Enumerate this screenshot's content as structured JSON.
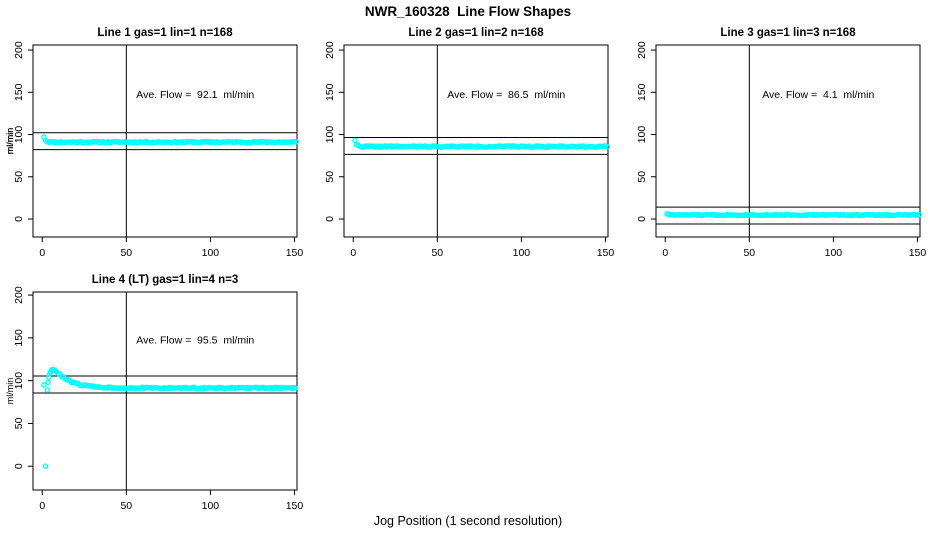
{
  "header": {
    "title": "NWR_160328  Line Flow Shapes"
  },
  "footer": {
    "xlabel": "Jog Position (1 second resolution)"
  },
  "colors": {
    "marker": "#00ffff",
    "axis": "#000000",
    "background": "#ffffff"
  },
  "chart_data": [
    {
      "type": "scatter",
      "title": "Line 1 gas=1 lin=1 n=168",
      "gas": 1,
      "lin": 1,
      "n": 168,
      "annotation": "Ave. Flow =  92.1  ml/min",
      "ave_flow_ml_min": 92.1,
      "ylabel": "ml/min",
      "xticks": [
        0,
        50,
        100,
        150
      ],
      "yticks": [
        0,
        50,
        100,
        150,
        200
      ],
      "xlim": [
        -5.5,
        151.5
      ],
      "ylim": [
        -21.3,
        206
      ],
      "vline_x": 50,
      "ref_lines": [
        102.1,
        82.1
      ],
      "marker": "open-circle",
      "marker_color": "#00ffff",
      "series": [
        {
          "name": "flow",
          "points_spec": {
            "kind": "settle",
            "x_start": 1,
            "x_end": 151,
            "step": 1,
            "y_start": 97.5,
            "y_settle": 91.0,
            "tau": 0.9,
            "jitter": 1.6,
            "seed": 11
          }
        }
      ]
    },
    {
      "type": "scatter",
      "title": "Line 2 gas=1 lin=2 n=168",
      "gas": 1,
      "lin": 2,
      "n": 168,
      "annotation": "Ave. Flow =  86.5  ml/min",
      "ave_flow_ml_min": 86.5,
      "ylabel": "ml/min",
      "xticks": [
        0,
        50,
        100,
        150
      ],
      "yticks": [
        0,
        50,
        100,
        150,
        200
      ],
      "xlim": [
        -5.5,
        151.5
      ],
      "ylim": [
        -21.3,
        206
      ],
      "vline_x": 50,
      "ref_lines": [
        96.5,
        76.5
      ],
      "marker": "open-circle",
      "marker_color": "#00ffff",
      "series": [
        {
          "name": "flow",
          "points_spec": {
            "kind": "settle",
            "x_start": 1,
            "x_end": 151,
            "step": 1,
            "y_start": 93.5,
            "y_settle": 85.8,
            "tau": 0.9,
            "jitter": 1.7,
            "seed": 22
          }
        }
      ]
    },
    {
      "type": "scatter",
      "title": "Line 3 gas=1 lin=3 n=168",
      "gas": 1,
      "lin": 3,
      "n": 168,
      "annotation": "Ave. Flow =  4.1  ml/min",
      "ave_flow_ml_min": 4.1,
      "ylabel": "ml/min",
      "xticks": [
        0,
        50,
        100,
        150
      ],
      "yticks": [
        0,
        50,
        100,
        150,
        200
      ],
      "xlim": [
        -5.5,
        151.5
      ],
      "ylim": [
        -21.3,
        206
      ],
      "vline_x": 50,
      "ref_lines": [
        14.1,
        -5.9
      ],
      "marker": "open-circle",
      "marker_color": "#00ffff",
      "series": [
        {
          "name": "flow",
          "points_spec": {
            "kind": "settle",
            "x_start": 1,
            "x_end": 151,
            "step": 1,
            "y_start": 6.5,
            "y_settle": 4.8,
            "tau": 1.2,
            "jitter": 1.3,
            "seed": 33
          }
        }
      ]
    },
    {
      "type": "scatter",
      "title": "Line 4 (LT) gas=1 lin=4 n=3",
      "gas": 1,
      "lin": 4,
      "n": 3,
      "annotation": "Ave. Flow =  95.5  ml/min",
      "ave_flow_ml_min": 95.5,
      "ylabel": "ml/min",
      "xticks": [
        0,
        50,
        100,
        150
      ],
      "yticks": [
        0,
        50,
        100,
        150,
        200
      ],
      "xlim": [
        -5.5,
        151.5
      ],
      "ylim": [
        -27.8,
        203.6
      ],
      "vline_x": 50,
      "ref_lines": [
        105.5,
        85.5
      ],
      "marker": "open-circle",
      "marker_color": "#00ffff",
      "series": [
        {
          "name": "flow",
          "points_spec": {
            "kind": "peak_decay",
            "head_points": [
              [
                1,
                95
              ],
              [
                2,
                0
              ],
              [
                3,
                89
              ],
              [
                3.5,
                98
              ],
              [
                4,
                104
              ],
              [
                4.5,
                108
              ],
              [
                5,
                110
              ],
              [
                5.5,
                112
              ],
              [
                6,
                113
              ],
              [
                6.5,
                113
              ],
              [
                7,
                112.5
              ],
              [
                7.5,
                112
              ],
              [
                8,
                111
              ]
            ],
            "decay": {
              "x_start": 8.5,
              "x_end": 151,
              "step": 1,
              "y_settle": 91.3,
              "amp": 19.5,
              "tau": 9,
              "jitter": 1.8,
              "seed": 44
            }
          }
        }
      ]
    }
  ]
}
